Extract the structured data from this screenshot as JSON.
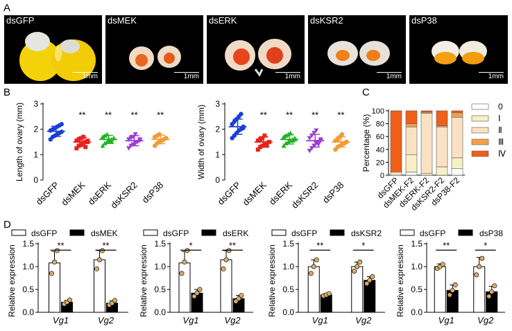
{
  "panels": {
    "A": {
      "letter": "A",
      "photos": [
        {
          "label": "dsGFP",
          "scale": "1mm"
        },
        {
          "label": "dsMEK",
          "scale": "1mm"
        },
        {
          "label": "dsERK",
          "scale": "1mm"
        },
        {
          "label": "dsKSR2",
          "scale": "1mm"
        },
        {
          "label": "dsP38",
          "scale": "1mm"
        }
      ]
    },
    "B": {
      "letter": "B"
    },
    "C": {
      "letter": "C"
    },
    "D": {
      "letter": "D"
    }
  },
  "colors": {
    "dsGFP": "#1a3fd6",
    "dsMEK": "#e8231e",
    "dsERK": "#22b324",
    "dsKSR2": "#9a3dd4",
    "dsP38": "#f29a38",
    "stage0": "#ffffff",
    "stageI": "#f6f0c4",
    "stageII": "#fbe1c4",
    "stageIII": "#f4a04a",
    "stageIV": "#f06019"
  },
  "chart_data": [
    {
      "type": "scatter",
      "panel": "B-left",
      "ylabel": "Length of ovary (mm)",
      "ylim": [
        0,
        3
      ],
      "yticks": [
        "0",
        "1",
        "2",
        "3"
      ],
      "categories": [
        "dsGFP",
        "dsMEK",
        "dsERK",
        "dsKSR2",
        "dsP38"
      ],
      "means": [
        1.92,
        1.5,
        1.6,
        1.55,
        1.6
      ],
      "sd": [
        0.2,
        0.18,
        0.16,
        0.2,
        0.17
      ],
      "significance": [
        "",
        "**",
        "**",
        "**",
        "**"
      ],
      "points": [
        [
          1.6,
          1.7,
          1.75,
          1.8,
          1.85,
          1.9,
          1.95,
          2.0,
          2.05,
          2.1,
          2.15,
          2.2
        ],
        [
          1.25,
          1.35,
          1.4,
          1.45,
          1.5,
          1.5,
          1.55,
          1.6,
          1.65,
          1.7,
          1.3,
          1.55
        ],
        [
          1.35,
          1.45,
          1.5,
          1.55,
          1.6,
          1.65,
          1.7,
          1.75,
          1.8,
          1.6,
          1.5,
          1.65
        ],
        [
          1.25,
          1.35,
          1.4,
          1.45,
          1.5,
          1.55,
          1.6,
          1.65,
          1.7,
          1.8,
          1.5,
          1.6
        ],
        [
          1.35,
          1.45,
          1.5,
          1.55,
          1.6,
          1.65,
          1.7,
          1.75,
          1.8,
          1.55,
          1.6,
          1.65
        ]
      ]
    },
    {
      "type": "scatter",
      "panel": "B-right",
      "ylabel": "Width of ovary (mm)",
      "ylim": [
        0,
        3
      ],
      "yticks": [
        "0",
        "1",
        "2",
        "3"
      ],
      "categories": [
        "dsGFP",
        "dsMEK",
        "dsERK",
        "dsKSR2",
        "dsP38"
      ],
      "means": [
        2.1,
        1.5,
        1.6,
        1.55,
        1.5
      ],
      "sd": [
        0.3,
        0.2,
        0.18,
        0.25,
        0.2
      ],
      "significance": [
        "",
        "**",
        "**",
        "**",
        "**"
      ],
      "points": [
        [
          1.65,
          1.75,
          1.85,
          1.95,
          2.0,
          2.1,
          2.2,
          2.3,
          2.4,
          2.5,
          2.6,
          2.05
        ],
        [
          1.2,
          1.3,
          1.35,
          1.4,
          1.45,
          1.5,
          1.55,
          1.6,
          1.65,
          1.75,
          1.35,
          1.5
        ],
        [
          1.35,
          1.45,
          1.5,
          1.55,
          1.6,
          1.65,
          1.7,
          1.75,
          1.8,
          1.85,
          1.55,
          1.6
        ],
        [
          1.15,
          1.25,
          1.35,
          1.45,
          1.5,
          1.55,
          1.65,
          1.75,
          1.85,
          1.95,
          1.4,
          1.6
        ],
        [
          1.2,
          1.3,
          1.35,
          1.4,
          1.45,
          1.5,
          1.55,
          1.6,
          1.7,
          1.8,
          1.45,
          1.5
        ]
      ]
    },
    {
      "type": "bar",
      "panel": "C",
      "stacked": true,
      "ylabel": "Percentage (%)",
      "ylim": [
        0,
        100
      ],
      "yticks": [
        "0",
        "20",
        "40",
        "60",
        "80",
        "100"
      ],
      "categories": [
        "dsGFP",
        "dsMEK-F2",
        "dsERK-F2",
        "dsKSR2-F2",
        "dsP38-F2"
      ],
      "legend_position": "right",
      "series": [
        {
          "name": "0",
          "values": [
            0,
            5,
            0,
            0,
            10
          ]
        },
        {
          "name": "Ⅰ",
          "values": [
            0,
            27,
            3,
            13,
            17
          ]
        },
        {
          "name": "Ⅱ",
          "values": [
            5,
            43,
            93,
            62,
            63
          ]
        },
        {
          "name": "Ⅲ",
          "values": [
            0,
            5,
            2,
            2,
            7
          ]
        },
        {
          "name": "Ⅳ",
          "values": [
            95,
            20,
            2,
            23,
            3
          ]
        }
      ]
    },
    {
      "type": "bar",
      "panel": "D1",
      "ylabel": "Relative expression",
      "ylim": [
        0,
        1.5
      ],
      "yticks": [
        "0.0",
        "0.5",
        "1.0",
        "1.5"
      ],
      "categories": [
        "Vg1",
        "Vg2"
      ],
      "legend_position": "top",
      "series": [
        {
          "name": "dsGFP",
          "values": [
            1.08,
            1.15
          ],
          "sd": [
            0.25,
            0.2
          ],
          "points": [
            [
              0.85,
              1.1,
              1.35
            ],
            [
              0.95,
              1.15,
              1.35
            ]
          ]
        },
        {
          "name": "dsMEK",
          "values": [
            0.22,
            0.2
          ],
          "sd": [
            0.04,
            0.05
          ],
          "points": [
            [
              0.18,
              0.22,
              0.27
            ],
            [
              0.16,
              0.2,
              0.26
            ]
          ]
        }
      ],
      "significance": [
        "**",
        "**"
      ]
    },
    {
      "type": "bar",
      "panel": "D2",
      "ylabel": "Relative expression",
      "ylim": [
        0,
        1.5
      ],
      "yticks": [
        "0.0",
        "0.5",
        "1.0",
        "1.5"
      ],
      "categories": [
        "Vg1",
        "Vg2"
      ],
      "legend_position": "top",
      "series": [
        {
          "name": "dsGFP",
          "values": [
            1.08,
            1.15
          ],
          "sd": [
            0.25,
            0.2
          ],
          "points": [
            [
              0.85,
              1.1,
              1.35
            ],
            [
              0.95,
              1.15,
              1.35
            ]
          ]
        },
        {
          "name": "dsERK",
          "values": [
            0.42,
            0.3
          ],
          "sd": [
            0.08,
            0.07
          ],
          "points": [
            [
              0.35,
              0.42,
              0.5
            ],
            [
              0.24,
              0.3,
              0.37
            ]
          ]
        }
      ],
      "significance": [
        "*",
        "**"
      ]
    },
    {
      "type": "bar",
      "panel": "D3",
      "ylabel": "Relative expression",
      "ylim": [
        0,
        1.5
      ],
      "yticks": [
        "0.0",
        "0.5",
        "1.0",
        "1.5"
      ],
      "categories": [
        "Vg1",
        "Vg2"
      ],
      "legend_position": "top",
      "series": [
        {
          "name": "dsGFP",
          "values": [
            1.0,
            1.0
          ],
          "sd": [
            0.15,
            0.1
          ],
          "points": [
            [
              0.85,
              1.0,
              1.15
            ],
            [
              0.9,
              1.0,
              1.1
            ]
          ]
        },
        {
          "name": "dsKSR2",
          "values": [
            0.38,
            0.7
          ],
          "sd": [
            0.03,
            0.08
          ],
          "points": [
            [
              0.36,
              0.38,
              0.41
            ],
            [
              0.63,
              0.7,
              0.78
            ]
          ]
        }
      ],
      "significance": [
        "**",
        "*"
      ]
    },
    {
      "type": "bar",
      "panel": "D4",
      "ylabel": "Relative expression",
      "ylim": [
        0,
        1.5
      ],
      "yticks": [
        "0.0",
        "0.5",
        "1.0",
        "1.5"
      ],
      "categories": [
        "Vg1",
        "Vg2"
      ],
      "legend_position": "top",
      "series": [
        {
          "name": "dsGFP",
          "values": [
            1.0,
            1.0
          ],
          "sd": [
            0.06,
            0.2
          ],
          "points": [
            [
              0.96,
              1.0,
              1.05
            ],
            [
              0.82,
              1.0,
              1.18
            ]
          ]
        },
        {
          "name": "dsP38",
          "values": [
            0.48,
            0.45
          ],
          "sd": [
            0.12,
            0.12
          ],
          "points": [
            [
              0.38,
              0.48,
              0.6
            ],
            [
              0.35,
              0.45,
              0.58
            ]
          ]
        }
      ],
      "significance": [
        "**",
        "*"
      ]
    }
  ]
}
